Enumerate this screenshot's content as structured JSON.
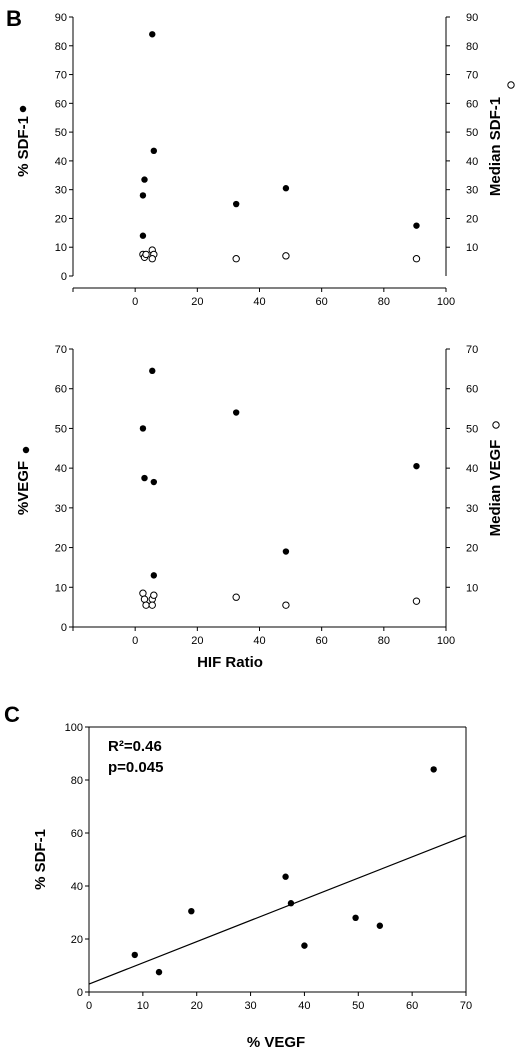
{
  "panels": {
    "b": "B",
    "c": "C"
  },
  "chart_data": [
    {
      "id": "b-top",
      "type": "scatter",
      "xlim": [
        -20,
        100
      ],
      "ylim": [
        0,
        90
      ],
      "y2lim": [
        0,
        90
      ],
      "x_ticks": [
        "0",
        "20",
        "40",
        "60",
        "80",
        "100"
      ],
      "y_ticks": [
        "0",
        "10",
        "20",
        "30",
        "40",
        "50",
        "60",
        "70",
        "80",
        "90"
      ],
      "y2_ticks": [
        "10",
        "20",
        "30",
        "40",
        "50",
        "60",
        "70",
        "80",
        "90"
      ],
      "ylabel": "% SDF-1",
      "y2label": "Median SDF-1",
      "xlabel": "",
      "series": [
        {
          "marker": "filled",
          "axis": "left",
          "x": [
            5.5,
            3,
            2.5,
            6,
            2.5,
            32.5,
            48.5,
            90.5
          ],
          "y": [
            84,
            33.5,
            28,
            43.5,
            14,
            25,
            30.5,
            17.5
          ]
        },
        {
          "marker": "open",
          "axis": "right",
          "x": [
            2.5,
            3,
            3.5,
            5.5,
            6,
            5.5,
            32.5,
            48.5,
            90.5
          ],
          "y": [
            7.5,
            6.5,
            7.5,
            9,
            7.5,
            6,
            6,
            7,
            6
          ]
        }
      ]
    },
    {
      "id": "b-bottom",
      "type": "scatter",
      "xlim": [
        -20,
        100
      ],
      "ylim": [
        0,
        70
      ],
      "y2lim": [
        0,
        70
      ],
      "x_ticks": [
        "0",
        "20",
        "40",
        "60",
        "80",
        "100"
      ],
      "y_ticks": [
        "0",
        "10",
        "20",
        "30",
        "40",
        "50",
        "60",
        "70"
      ],
      "y2_ticks": [
        "10",
        "20",
        "30",
        "40",
        "50",
        "60",
        "70"
      ],
      "ylabel": "%VEGF",
      "y2label": "Median VEGF",
      "xlabel": "HIF Ratio",
      "series": [
        {
          "marker": "filled",
          "axis": "left",
          "x": [
            5.5,
            2.5,
            3,
            6,
            6,
            2.5,
            32.5,
            48.5,
            90.5
          ],
          "y": [
            64.5,
            50,
            37.5,
            36.5,
            13,
            8.5,
            54,
            19,
            40.5
          ]
        },
        {
          "marker": "open",
          "axis": "right",
          "x": [
            2.5,
            3,
            3.5,
            5.5,
            6,
            5.5,
            32.5,
            48.5,
            90.5
          ],
          "y": [
            8.5,
            7,
            5.5,
            7,
            8,
            5.5,
            7.5,
            5.5,
            6.5
          ]
        }
      ]
    },
    {
      "id": "c",
      "type": "scatter",
      "xlim": [
        0,
        70
      ],
      "ylim": [
        0,
        100
      ],
      "x_ticks": [
        "0",
        "10",
        "20",
        "30",
        "40",
        "50",
        "60",
        "70"
      ],
      "y_ticks": [
        "0",
        "20",
        "40",
        "60",
        "80",
        "100"
      ],
      "ylabel": "% SDF-1",
      "xlabel": "% VEGF",
      "annotation_r2": "R²=0.46",
      "annotation_p": "p=0.045",
      "trendline": {
        "x": [
          0,
          70
        ],
        "y": [
          3,
          59
        ]
      },
      "series": [
        {
          "marker": "filled",
          "x": [
            8.5,
            13,
            19,
            36.5,
            37.5,
            40,
            49.5,
            54,
            64
          ],
          "y": [
            14,
            7.5,
            30.5,
            43.5,
            33.5,
            17.5,
            28,
            25,
            84
          ]
        }
      ]
    }
  ]
}
